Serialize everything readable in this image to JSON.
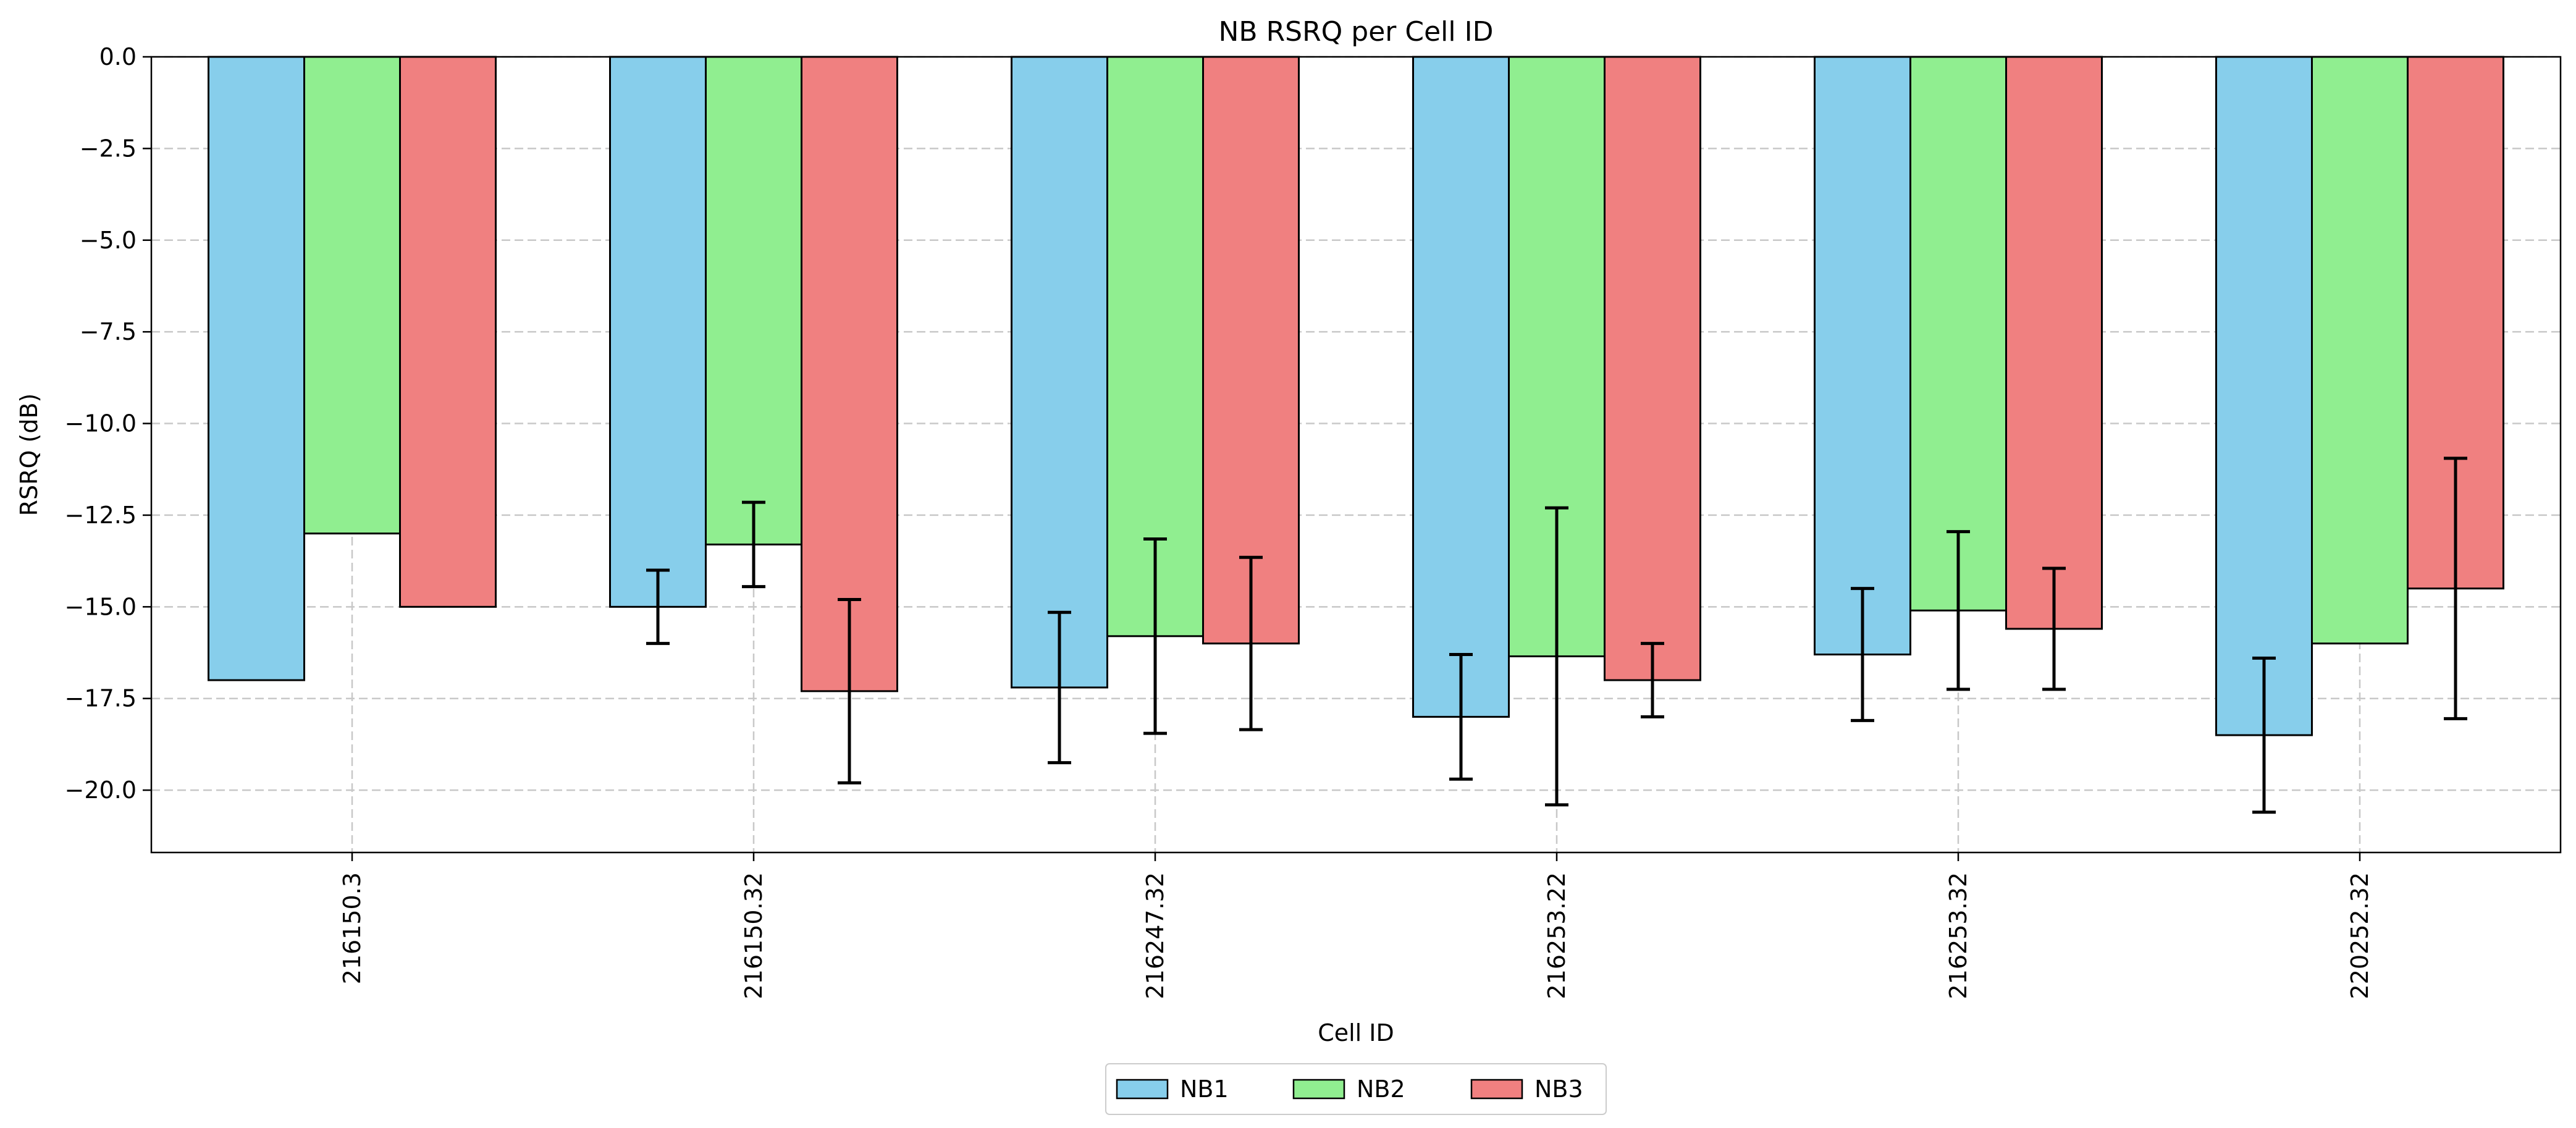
{
  "chart_data": {
    "type": "bar",
    "title": "NB RSRQ per Cell ID",
    "xlabel": "Cell ID",
    "ylabel": "RSRQ (dB)",
    "ylim": [
      -21.7,
      0
    ],
    "yticks": [
      0,
      -2.5,
      -5,
      -7.5,
      -10,
      -12.5,
      -15,
      -17.5,
      -20
    ],
    "ytick_labels": [
      "0.0",
      "−2.5",
      "−5.0",
      "−7.5",
      "−10.0",
      "−12.5",
      "−15.0",
      "−17.5",
      "−20.0"
    ],
    "grid": true,
    "legend_position": "bottom-center",
    "categories": [
      "216150.3",
      "216150.32",
      "216247.32",
      "216253.22",
      "216253.32",
      "220252.32"
    ],
    "series": [
      {
        "name": "NB1",
        "color": "#87ceeb",
        "values": [
          -17.0,
          -15.0,
          -17.2,
          -18.0,
          -16.3,
          -18.5
        ],
        "errors": [
          null,
          1.0,
          2.05,
          1.7,
          1.8,
          2.1
        ]
      },
      {
        "name": "NB2",
        "color": "#90ee90",
        "values": [
          -13.0,
          -13.3,
          -15.8,
          -16.35,
          -15.1,
          -16.0
        ],
        "errors": [
          null,
          1.15,
          2.65,
          4.05,
          2.15,
          null
        ]
      },
      {
        "name": "NB3",
        "color": "#f08080",
        "values": [
          -15.0,
          -17.3,
          -16.0,
          -17.0,
          -15.6,
          -14.5
        ],
        "errors": [
          null,
          2.5,
          2.35,
          1.0,
          1.65,
          3.55
        ]
      }
    ]
  }
}
